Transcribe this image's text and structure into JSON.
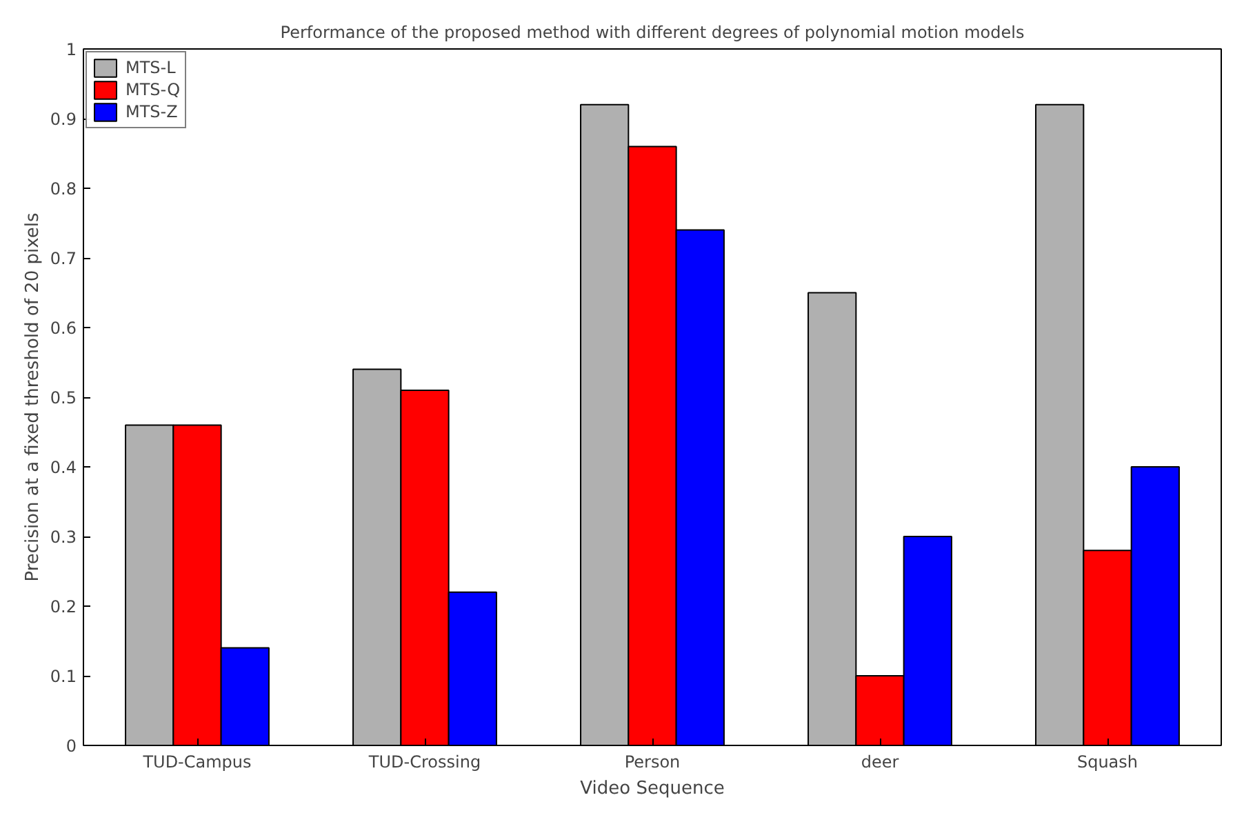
{
  "chart_data": {
    "type": "bar",
    "title": "Performance of the proposed method with different degrees of polynomial motion models",
    "xlabel": "Video Sequence",
    "ylabel": "Precision at a fixed threshold of 20 pixels",
    "categories": [
      "TUD-Campus",
      "TUD-Crossing",
      "Person",
      "deer",
      "Squash"
    ],
    "series": [
      {
        "name": "MTS-L",
        "color": "#b0b0b0",
        "values": [
          0.46,
          0.54,
          0.92,
          0.65,
          0.92
        ]
      },
      {
        "name": "MTS-Q",
        "color": "#ff0000",
        "values": [
          0.46,
          0.51,
          0.86,
          0.1,
          0.28
        ]
      },
      {
        "name": "MTS-Z",
        "color": "#0000ff",
        "values": [
          0.14,
          0.22,
          0.74,
          0.3,
          0.4
        ]
      }
    ],
    "ylim": [
      0,
      1
    ],
    "yticks": [
      0,
      0.1,
      0.2,
      0.3,
      0.4,
      0.5,
      0.6,
      0.7,
      0.8,
      0.9,
      1
    ],
    "grid": false,
    "legend": "top left"
  }
}
